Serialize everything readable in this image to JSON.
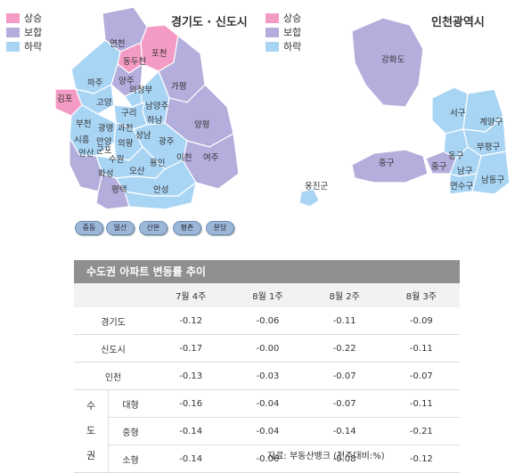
{
  "map_left": {
    "title": "경기도 · 신도시",
    "districts": [
      "연천",
      "포천",
      "동두천",
      "양주",
      "파주",
      "가평",
      "김포",
      "고양",
      "의정부",
      "남양주",
      "구리",
      "하남",
      "양평",
      "부천",
      "광명",
      "과천",
      "시흥",
      "안양",
      "의왕",
      "성남",
      "광주",
      "안산",
      "군포",
      "수원",
      "여주",
      "이천",
      "화성",
      "오산",
      "용인",
      "평택",
      "안성"
    ],
    "new_cities": [
      "중동",
      "일산",
      "산본",
      "평촌",
      "분당"
    ]
  },
  "map_right": {
    "title": "인천광역시",
    "districts": [
      "강화도",
      "서구",
      "계양구",
      "부평구",
      "중구",
      "동구",
      "남구",
      "연수구",
      "남동구",
      "중구",
      "옹진군"
    ]
  },
  "legend": [
    {
      "label": "상승",
      "color": "#f39bc4"
    },
    {
      "label": "보합",
      "color": "#b3aedb"
    },
    {
      "label": "하락",
      "color": "#a9d5f5"
    }
  ],
  "table": {
    "title": "수도권 아파트 변동률 추이",
    "columns": [
      "7월 4주",
      "8월 1주",
      "8월 2주",
      "8월 3주"
    ],
    "rows": [
      {
        "region": "경기도",
        "values": [
          "-0.12",
          "-0.06",
          "-0.11",
          "-0.09"
        ]
      },
      {
        "region": "신도시",
        "values": [
          "-0.17",
          "-0.00",
          "-0.22",
          "-0.11"
        ]
      },
      {
        "region": "인천",
        "values": [
          "-0.13",
          "-0.03",
          "-0.07",
          "-0.07"
        ]
      }
    ],
    "group_label": [
      "수",
      "도",
      "권"
    ],
    "group_rows": [
      {
        "region": "대형",
        "values": [
          "-0.16",
          "-0.04",
          "-0.07",
          "-0.11"
        ]
      },
      {
        "region": "중형",
        "values": [
          "-0.14",
          "-0.04",
          "-0.14",
          "-0.21"
        ]
      },
      {
        "region": "소형",
        "values": [
          "-0.14",
          "-0.06",
          "-0.08",
          "-0.12"
        ]
      }
    ]
  },
  "source_note": "자료: 부동산뱅크          (전주대비:%)"
}
